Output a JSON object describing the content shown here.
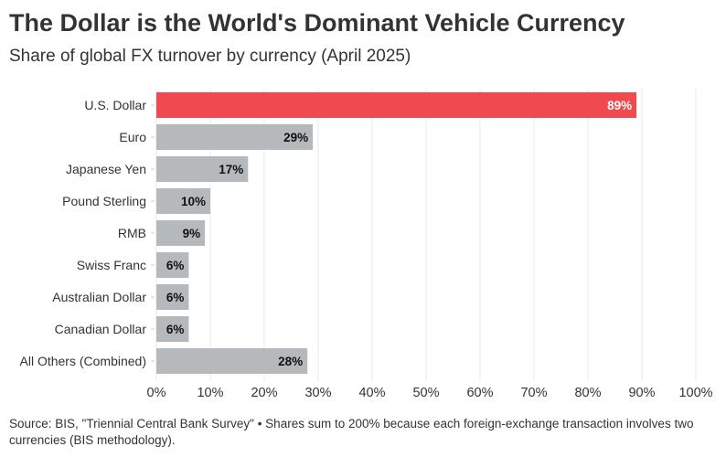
{
  "chart_data": {
    "type": "bar",
    "orientation": "horizontal",
    "title": "The Dollar is the World's Dominant Vehicle Currency",
    "subtitle": "Share of global FX turnover by currency (April 2025)",
    "categories": [
      "U.S. Dollar",
      "Euro",
      "Japanese Yen",
      "Pound Sterling",
      "RMB",
      "Swiss Franc",
      "Australian Dollar",
      "Canadian Dollar",
      "All Others (Combined)"
    ],
    "values": [
      89,
      29,
      17,
      10,
      9,
      6,
      6,
      6,
      28
    ],
    "data_labels": [
      "89%",
      "29%",
      "17%",
      "10%",
      "9%",
      "6%",
      "6%",
      "6%",
      "28%"
    ],
    "xlim": [
      0,
      100
    ],
    "xticks": [
      0,
      10,
      20,
      30,
      40,
      50,
      60,
      70,
      80,
      90,
      100
    ],
    "xtick_labels": [
      "0%",
      "10%",
      "20%",
      "30%",
      "40%",
      "50%",
      "60%",
      "70%",
      "80%",
      "90%",
      "100%"
    ],
    "grid": true,
    "colors": {
      "highlight": "#f04a50",
      "default": "#b6b9bc",
      "grid": "#eeeeee",
      "highlight_label": "#ffffff",
      "default_label": "#111111"
    },
    "highlight_index": 0,
    "note": "Source: BIS, \"Triennial Central Bank Survey\" • Shares sum to 200% because each foreign-exchange transaction involves two currencies (BIS methodology)."
  }
}
